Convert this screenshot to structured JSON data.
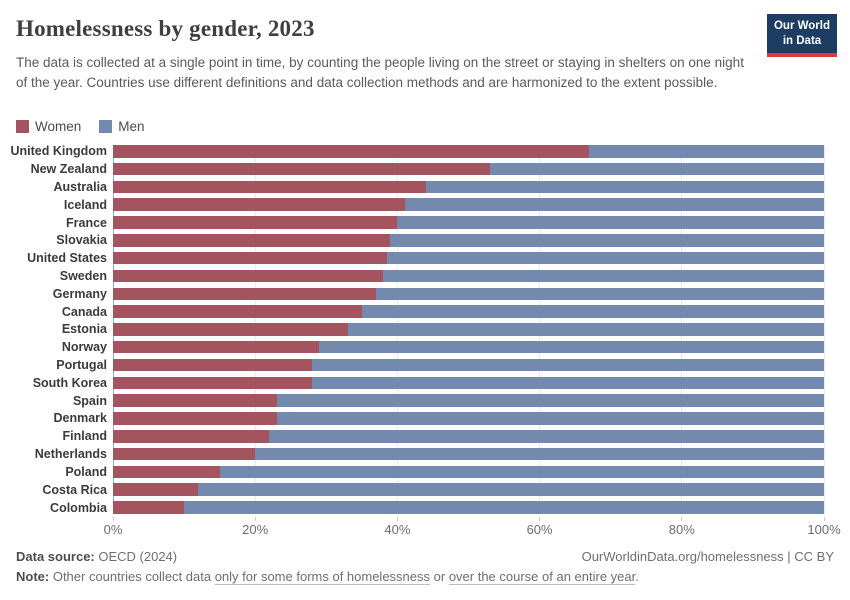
{
  "header": {
    "title": "Homelessness by gender, 2023",
    "subtitle": "The data is collected at a single point in time, by counting the people living on the street or staying in shelters on one night of the year. Countries use different definitions and data collection methods and are harmonized to the extent possible.",
    "logo": {
      "line1": "Our World",
      "line2": "in Data",
      "bg_color": "#1d3d63",
      "accent_color": "#d93a3e"
    }
  },
  "legend": {
    "items": [
      {
        "label": "Women",
        "color": "#a4545f"
      },
      {
        "label": "Men",
        "color": "#7389ae"
      }
    ]
  },
  "chart_data": {
    "type": "bar",
    "stacked": true,
    "orientation": "horizontal",
    "title": "Homelessness by gender, 2023",
    "unit": "%",
    "xlim": [
      0,
      100
    ],
    "grid": true,
    "legend_position": "top-left",
    "x_ticks": [
      {
        "value": 0,
        "label": "0%"
      },
      {
        "value": 20,
        "label": "20%"
      },
      {
        "value": 40,
        "label": "40%"
      },
      {
        "value": 60,
        "label": "60%"
      },
      {
        "value": 80,
        "label": "80%"
      },
      {
        "value": 100,
        "label": "100%"
      }
    ],
    "categories": [
      "United Kingdom",
      "New Zealand",
      "Australia",
      "Iceland",
      "France",
      "Slovakia",
      "United States",
      "Sweden",
      "Germany",
      "Canada",
      "Estonia",
      "Norway",
      "Portugal",
      "South Korea",
      "Spain",
      "Denmark",
      "Finland",
      "Netherlands",
      "Poland",
      "Costa Rica",
      "Colombia"
    ],
    "series": [
      {
        "name": "Women",
        "color": "#a4545f",
        "values": [
          67,
          53,
          44,
          41,
          40,
          39,
          38.5,
          38,
          37,
          35,
          33,
          29,
          28,
          28,
          23,
          23,
          22,
          20,
          15,
          12,
          10
        ]
      },
      {
        "name": "Men",
        "color": "#7389ae",
        "values": [
          33,
          47,
          56,
          59,
          60,
          61,
          61.5,
          62,
          63,
          65,
          67,
          71,
          72,
          72,
          77,
          77,
          78,
          80,
          85,
          88,
          90
        ]
      }
    ]
  },
  "footer": {
    "source_label": "Data source:",
    "source_value": " OECD (2024)",
    "citation": "OurWorldinData.org/homelessness | CC BY",
    "note_label": "Note:",
    "note_pre": " Other countries collect data ",
    "note_link1": "only for some forms of homelessness",
    "note_mid": " or ",
    "note_link2": "over the course of an entire year",
    "note_end": "."
  }
}
